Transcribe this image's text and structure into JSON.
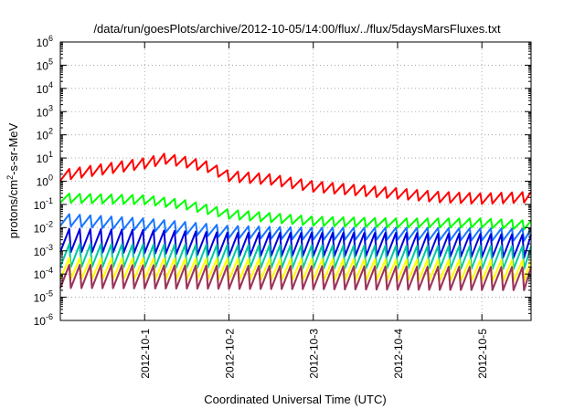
{
  "chart_data": {
    "type": "line",
    "title": "/data/run/goesPlots/archive/2012-10-05/14:00/flux/../flux/5daysMarsFluxes.txt",
    "xlabel": "Coordinated Universal Time (UTC)",
    "ylabel": "protons/cm2-s-sr-MeV",
    "ylabel_parts": {
      "pre": "protons/cm",
      "sup": "2",
      "post": "-s-sr-MeV"
    },
    "y_scale": "log",
    "y_tick_exponents": [
      -6,
      -5,
      -4,
      -3,
      -2,
      -1,
      0,
      1,
      2,
      3,
      4,
      5,
      6
    ],
    "y_tick_base": "10",
    "ylim": [
      1e-06,
      1000000.0
    ],
    "xlim": [
      "2012-09-30T00:00",
      "2012-10-05T14:00"
    ],
    "x_ticks": [
      "2012-10-1",
      "2012-10-2",
      "2012-10-3",
      "2012-10-4",
      "2012-10-5"
    ],
    "x_tick_dates": [
      "2012-10-01",
      "2012-10-02",
      "2012-10-03",
      "2012-10-04",
      "2012-10-05"
    ],
    "grid": true,
    "legend": "none",
    "sawtooth_period_hours": 3,
    "series": [
      {
        "color": "#ff0000",
        "trough_ratio": 0.35,
        "peaks": [
          [
            "2012-09-30T00:00",
            3.0
          ],
          [
            "2012-09-30T12:00",
            5.5
          ],
          [
            "2012-10-01T00:00",
            10.0
          ],
          [
            "2012-10-01T06:00",
            16.0
          ],
          [
            "2012-10-01T12:00",
            11.0
          ],
          [
            "2012-10-01T18:00",
            7.0
          ],
          [
            "2012-10-02T00:00",
            2.8
          ],
          [
            "2012-10-02T12:00",
            2.0
          ],
          [
            "2012-10-03T00:00",
            1.0
          ],
          [
            "2012-10-03T12:00",
            0.7
          ],
          [
            "2012-10-04T00:00",
            0.5
          ],
          [
            "2012-10-04T12:00",
            0.35
          ],
          [
            "2012-10-05T00:00",
            0.3
          ],
          [
            "2012-10-05T14:00",
            0.35
          ]
        ]
      },
      {
        "color": "#00ff00",
        "trough_ratio": 0.4,
        "peaks": [
          [
            "2012-09-30T00:00",
            0.3
          ],
          [
            "2012-10-01T00:00",
            0.25
          ],
          [
            "2012-10-01T12:00",
            0.15
          ],
          [
            "2012-10-02T00:00",
            0.06
          ],
          [
            "2012-10-03T00:00",
            0.03
          ],
          [
            "2012-10-04T00:00",
            0.025
          ],
          [
            "2012-10-05T00:00",
            0.025
          ],
          [
            "2012-10-05T14:00",
            0.02
          ]
        ]
      },
      {
        "color": "#1a75ff",
        "trough_ratio": 0.3,
        "peaks": [
          [
            "2012-09-30T00:00",
            0.04
          ],
          [
            "2012-10-01T00:00",
            0.025
          ],
          [
            "2012-10-02T00:00",
            0.012
          ],
          [
            "2012-10-03T00:00",
            0.01
          ],
          [
            "2012-10-04T00:00",
            0.01
          ],
          [
            "2012-10-05T14:00",
            0.009
          ]
        ]
      },
      {
        "color": "#0000dd",
        "trough_ratio": 0.1,
        "peaks": [
          [
            "2012-09-30T00:00",
            0.009
          ],
          [
            "2012-10-01T00:00",
            0.008
          ],
          [
            "2012-10-02T00:00",
            0.006
          ],
          [
            "2012-10-03T00:00",
            0.006
          ],
          [
            "2012-10-04T00:00",
            0.006
          ],
          [
            "2012-10-05T14:00",
            0.005
          ]
        ]
      },
      {
        "color": "#00c8a0",
        "trough_ratio": 0.1,
        "peaks": [
          [
            "2012-09-30T00:00",
            0.002
          ],
          [
            "2012-10-02T00:00",
            0.0018
          ],
          [
            "2012-10-05T14:00",
            0.0016
          ]
        ]
      },
      {
        "color": "#ffff00",
        "trough_ratio": 0.12,
        "peaks": [
          [
            "2012-09-30T00:00",
            0.0005
          ],
          [
            "2012-10-05T14:00",
            0.0004
          ]
        ]
      },
      {
        "color": "#ff9900",
        "trough_ratio": 0.1,
        "peaks": [
          [
            "2012-09-30T00:00",
            0.00025
          ],
          [
            "2012-10-05T14:00",
            0.0002
          ]
        ]
      },
      {
        "color": "#993366",
        "trough_ratio": 0.1,
        "peaks": [
          [
            "2012-09-30T00:00",
            0.00025
          ],
          [
            "2012-10-05T14:00",
            0.0002
          ]
        ]
      }
    ]
  }
}
